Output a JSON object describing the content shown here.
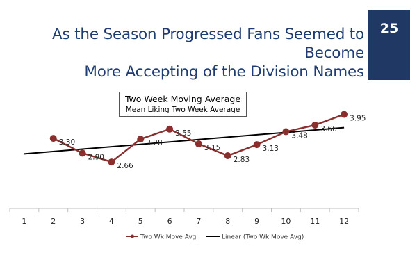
{
  "slide": {
    "title_line1": "As the Season Progressed Fans Seemed to Become",
    "title_line2": "More Accepting of the Division Names",
    "page_number": "25"
  },
  "chart_data": {
    "type": "line",
    "title": "Two Week Moving Average",
    "subtitle": "Mean Liking Two Week Average",
    "categories": [
      "1",
      "2",
      "3",
      "4",
      "5",
      "6",
      "7",
      "8",
      "9",
      "10",
      "11",
      "12"
    ],
    "series": [
      {
        "name": "Two Wk Move Avg",
        "color": "#8b2e2e",
        "x": [
          "2",
          "3",
          "4",
          "5",
          "6",
          "7",
          "8",
          "9",
          "10",
          "11",
          "12"
        ],
        "values": [
          3.3,
          2.9,
          2.66,
          3.28,
          3.55,
          3.15,
          2.83,
          3.13,
          3.48,
          3.66,
          3.95
        ],
        "labels": [
          "3.30",
          "2.90",
          "2.66",
          "3.28",
          "3.55",
          "3.15",
          "2.83",
          "3.13",
          "3.48",
          "3.66",
          "3.95"
        ]
      },
      {
        "name": "Linear (Two Wk Move Avg)",
        "color": "#000000",
        "type": "trendline",
        "x": [
          "1",
          "12"
        ],
        "values": [
          2.88,
          3.59
        ]
      }
    ],
    "ylim": [
      1.4,
      4.6
    ],
    "grid": false,
    "legend": "bottom"
  }
}
